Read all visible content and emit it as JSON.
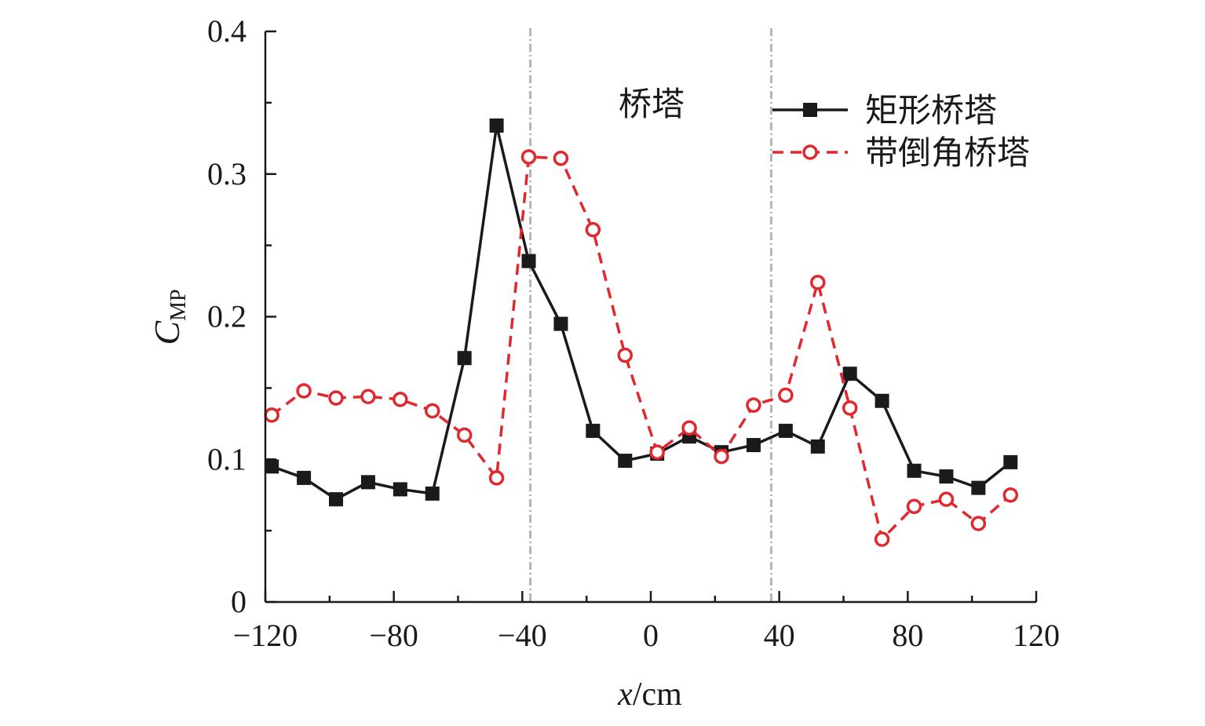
{
  "chart_data": {
    "type": "line",
    "xlabel": {
      "italic": "x",
      "rest": "/cm"
    },
    "ylabel": {
      "main": "C",
      "sub": "MP"
    },
    "xlim": [
      -120,
      120
    ],
    "ylim": [
      0,
      0.4
    ],
    "x_ticks": [
      "−120",
      "−80",
      "−40",
      "0",
      "40",
      "80",
      "120"
    ],
    "y_ticks": [
      "0",
      "0.1",
      "0.2",
      "0.3",
      "0.4"
    ],
    "grid": false,
    "legend_position": "top-right",
    "region": {
      "label": "桥塔",
      "x_start": -37.5,
      "x_end": 37.5
    },
    "series": [
      {
        "name": "矩形桥塔",
        "color": "#1a1a1a",
        "line_style": "solid",
        "marker": "square-filled",
        "x": [
          -118,
          -108,
          -98,
          -88,
          -78,
          -68,
          -58,
          -48,
          -38,
          -28,
          -18,
          -8,
          2,
          12,
          22,
          32,
          42,
          52,
          62,
          72,
          82,
          92,
          102,
          112
        ],
        "y": [
          0.095,
          0.087,
          0.072,
          0.084,
          0.079,
          0.076,
          0.171,
          0.334,
          0.239,
          0.195,
          0.12,
          0.099,
          0.104,
          0.116,
          0.105,
          0.11,
          0.12,
          0.109,
          0.16,
          0.141,
          0.092,
          0.088,
          0.08,
          0.098
        ]
      },
      {
        "name": "带倒角桥塔",
        "color": "#e0282e",
        "line_style": "dashed",
        "marker": "circle-open",
        "x": [
          -118,
          -108,
          -98,
          -88,
          -78,
          -68,
          -58,
          -48,
          -38,
          -28,
          -18,
          -8,
          2,
          12,
          22,
          32,
          42,
          52,
          62,
          72,
          82,
          92,
          102,
          112
        ],
        "y": [
          0.131,
          0.148,
          0.143,
          0.144,
          0.142,
          0.134,
          0.117,
          0.087,
          0.312,
          0.311,
          0.261,
          0.173,
          0.105,
          0.122,
          0.102,
          0.138,
          0.145,
          0.224,
          0.136,
          0.044,
          0.067,
          0.072,
          0.055,
          0.075
        ]
      }
    ]
  }
}
